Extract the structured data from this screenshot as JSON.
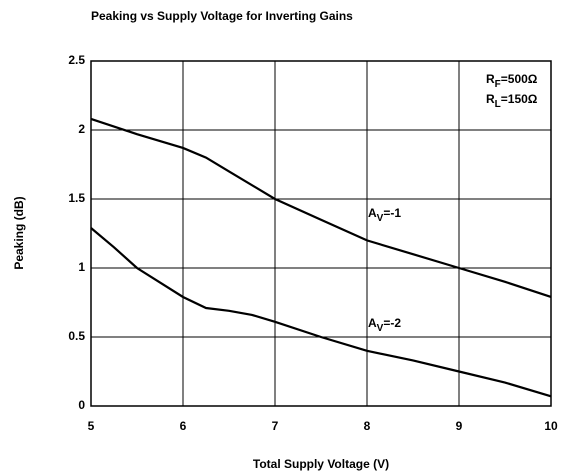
{
  "chart_data": {
    "type": "line",
    "title": "Peaking vs Supply Voltage for Inverting Gains",
    "x_label": "Total Supply Voltage (V)",
    "y_label": "Peaking (dB)",
    "xlim": [
      5,
      10
    ],
    "xticks": [
      5,
      6,
      7,
      8,
      9,
      10
    ],
    "ylim": [
      0,
      2.5
    ],
    "yticks": [
      0,
      0.5,
      1,
      1.5,
      2,
      2.5
    ],
    "grid": true,
    "notes": [
      [
        "R",
        "F",
        "=500Ω"
      ],
      [
        "R",
        "L",
        "=150Ω"
      ]
    ],
    "series": [
      {
        "label": [
          "A",
          "V",
          "=-1"
        ],
        "color": "#000000",
        "x": [
          5,
          5.5,
          6,
          6.25,
          6.5,
          7,
          7.5,
          8,
          8.5,
          9,
          9.5,
          10
        ],
        "values": [
          2.08,
          1.97,
          1.87,
          1.8,
          1.7,
          1.5,
          1.35,
          1.2,
          1.1,
          1.0,
          0.9,
          0.79
        ]
      },
      {
        "label": [
          "A",
          "V",
          "=-2"
        ],
        "color": "#000000",
        "x": [
          5,
          5.25,
          5.5,
          6,
          6.25,
          6.5,
          6.75,
          7,
          7.5,
          8,
          8.5,
          9,
          9.5,
          10
        ],
        "values": [
          1.29,
          1.15,
          1.0,
          0.79,
          0.71,
          0.69,
          0.66,
          0.61,
          0.5,
          0.4,
          0.33,
          0.25,
          0.17,
          0.07
        ]
      }
    ]
  }
}
